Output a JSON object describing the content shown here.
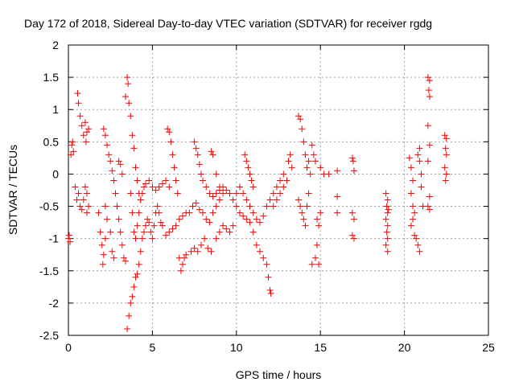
{
  "chart_data": {
    "type": "scatter",
    "title": "Day 172 of 2018, Sidereal Day-to-day VTEC variation (SDTVAR) for receiver rgdg",
    "xlabel": "GPS time / hours",
    "ylabel": "SDTVAR / TECUs",
    "xlim": [
      0,
      25
    ],
    "ylim": [
      -2.5,
      2
    ],
    "xticks": [
      0,
      5,
      10,
      15,
      20,
      25
    ],
    "yticks": [
      -2.5,
      -2,
      -1.5,
      -1,
      -0.5,
      0,
      0.5,
      1,
      1.5,
      2
    ],
    "grid": true,
    "marker": "plus",
    "color": "#ff0000",
    "series": [
      {
        "name": "SDTVAR",
        "points": [
          [
            0.0,
            -1.0
          ],
          [
            0.05,
            -0.95
          ],
          [
            0.1,
            -1.05
          ],
          [
            0.15,
            0.3
          ],
          [
            0.2,
            0.45
          ],
          [
            0.25,
            0.5
          ],
          [
            0.3,
            0.35
          ],
          [
            0.4,
            -0.2
          ],
          [
            0.5,
            -0.4
          ],
          [
            0.55,
            1.25
          ],
          [
            0.6,
            1.1
          ],
          [
            0.7,
            0.9
          ],
          [
            0.8,
            0.75
          ],
          [
            0.9,
            0.6
          ],
          [
            1.0,
            0.8
          ],
          [
            1.05,
            0.5
          ],
          [
            0.6,
            -0.3
          ],
          [
            0.7,
            -0.5
          ],
          [
            0.8,
            -0.55
          ],
          [
            0.9,
            -0.4
          ],
          [
            1.0,
            -0.2
          ],
          [
            1.1,
            -0.3
          ],
          [
            1.1,
            -0.6
          ],
          [
            1.2,
            -0.5
          ],
          [
            1.2,
            0.7
          ],
          [
            1.1,
            0.65
          ],
          [
            1.8,
            -0.6
          ],
          [
            1.9,
            -0.9
          ],
          [
            2.0,
            -1.1
          ],
          [
            2.05,
            -1.4
          ],
          [
            2.1,
            -1.25
          ],
          [
            2.2,
            -1.0
          ],
          [
            2.3,
            -0.7
          ],
          [
            2.2,
            -0.5
          ],
          [
            2.1,
            0.7
          ],
          [
            2.2,
            0.6
          ],
          [
            2.3,
            0.45
          ],
          [
            2.4,
            0.3
          ],
          [
            2.5,
            0.2
          ],
          [
            2.6,
            0.05
          ],
          [
            2.7,
            -0.1
          ],
          [
            2.8,
            -0.3
          ],
          [
            2.9,
            -0.5
          ],
          [
            3.0,
            -0.7
          ],
          [
            3.1,
            -0.9
          ],
          [
            3.2,
            -1.1
          ],
          [
            3.3,
            -1.3
          ],
          [
            3.4,
            -1.35
          ],
          [
            3.0,
            0.2
          ],
          [
            3.1,
            0.15
          ],
          [
            3.2,
            0.0
          ],
          [
            2.5,
            -0.9
          ],
          [
            2.6,
            -1.2
          ],
          [
            2.7,
            -1.3
          ],
          [
            3.4,
            1.2
          ],
          [
            3.5,
            1.5
          ],
          [
            3.55,
            1.4
          ],
          [
            3.6,
            1.1
          ],
          [
            3.7,
            0.9
          ],
          [
            3.8,
            0.6
          ],
          [
            3.9,
            0.4
          ],
          [
            4.0,
            0.1
          ],
          [
            4.1,
            -0.1
          ],
          [
            4.2,
            -0.3
          ],
          [
            4.3,
            -0.4
          ],
          [
            4.4,
            -0.3
          ],
          [
            4.5,
            -0.2
          ],
          [
            4.6,
            -0.15
          ],
          [
            4.8,
            -0.1
          ],
          [
            5.0,
            -0.2
          ],
          [
            5.2,
            -0.25
          ],
          [
            5.4,
            -0.2
          ],
          [
            5.6,
            -0.15
          ],
          [
            5.8,
            -0.1
          ],
          [
            6.0,
            -0.2
          ],
          [
            3.5,
            -2.4
          ],
          [
            3.6,
            -2.2
          ],
          [
            3.7,
            -2.0
          ],
          [
            3.8,
            -1.9
          ],
          [
            3.9,
            -1.75
          ],
          [
            4.0,
            -1.6
          ],
          [
            4.1,
            -1.55
          ],
          [
            4.2,
            -1.4
          ],
          [
            4.3,
            -1.2
          ],
          [
            4.4,
            -1.0
          ],
          [
            4.5,
            -0.9
          ],
          [
            4.6,
            -0.8
          ],
          [
            4.7,
            -0.7
          ],
          [
            4.8,
            -0.75
          ],
          [
            4.9,
            -0.9
          ],
          [
            5.0,
            -1.0
          ],
          [
            5.1,
            -0.8
          ],
          [
            5.2,
            -0.6
          ],
          [
            5.3,
            -0.5
          ],
          [
            5.4,
            -0.6
          ],
          [
            5.5,
            -0.75
          ],
          [
            3.7,
            -0.3
          ],
          [
            3.8,
            -0.6
          ],
          [
            3.9,
            -0.9
          ],
          [
            4.0,
            -1.0
          ],
          [
            4.1,
            -0.8
          ],
          [
            4.2,
            -0.6
          ],
          [
            4.3,
            -0.4
          ],
          [
            5.6,
            -0.8
          ],
          [
            5.8,
            -0.95
          ],
          [
            6.0,
            -0.9
          ],
          [
            6.2,
            -0.85
          ],
          [
            6.4,
            -0.8
          ],
          [
            6.6,
            -0.7
          ],
          [
            6.8,
            -0.65
          ],
          [
            7.0,
            -0.6
          ],
          [
            5.9,
            0.7
          ],
          [
            6.0,
            0.65
          ],
          [
            6.1,
            0.5
          ],
          [
            6.2,
            0.3
          ],
          [
            6.3,
            0.1
          ],
          [
            6.4,
            -0.1
          ],
          [
            6.5,
            -0.3
          ],
          [
            6.6,
            -1.3
          ],
          [
            6.7,
            -1.5
          ],
          [
            6.8,
            -1.4
          ],
          [
            6.9,
            -1.3
          ],
          [
            7.0,
            -1.25
          ],
          [
            7.5,
            0.5
          ],
          [
            7.6,
            0.4
          ],
          [
            7.7,
            0.3
          ],
          [
            7.8,
            0.15
          ],
          [
            7.9,
            0.0
          ],
          [
            8.0,
            -0.1
          ],
          [
            8.2,
            -0.2
          ],
          [
            8.4,
            -0.3
          ],
          [
            8.6,
            -0.35
          ],
          [
            8.8,
            -0.3
          ],
          [
            9.0,
            -0.25
          ],
          [
            9.2,
            -0.2
          ],
          [
            7.3,
            -1.2
          ],
          [
            7.5,
            -1.15
          ],
          [
            7.7,
            -1.2
          ],
          [
            7.9,
            -1.1
          ],
          [
            8.1,
            -1.0
          ],
          [
            8.3,
            -1.15
          ],
          [
            8.5,
            -1.2
          ],
          [
            7.2,
            -0.6
          ],
          [
            7.4,
            -0.5
          ],
          [
            7.6,
            -0.45
          ],
          [
            7.8,
            -0.55
          ],
          [
            8.0,
            -0.6
          ],
          [
            8.2,
            -0.7
          ],
          [
            8.4,
            -0.75
          ],
          [
            8.6,
            -0.6
          ],
          [
            8.8,
            -0.5
          ],
          [
            9.0,
            -0.4
          ],
          [
            9.2,
            -0.3
          ],
          [
            9.4,
            -0.25
          ],
          [
            9.6,
            -0.3
          ],
          [
            9.8,
            -0.4
          ],
          [
            10.0,
            -0.5
          ],
          [
            8.5,
            0.35
          ],
          [
            8.6,
            0.3
          ],
          [
            8.8,
            0.0
          ],
          [
            9.0,
            -0.2
          ],
          [
            8.8,
            -1.0
          ],
          [
            9.0,
            -0.9
          ],
          [
            9.2,
            -0.8
          ],
          [
            9.4,
            -0.85
          ],
          [
            9.6,
            -0.9
          ],
          [
            9.8,
            -0.8
          ],
          [
            10.0,
            -0.3
          ],
          [
            10.2,
            -0.2
          ],
          [
            10.4,
            -0.3
          ],
          [
            10.6,
            -0.4
          ],
          [
            10.8,
            -0.5
          ],
          [
            11.0,
            -0.6
          ],
          [
            11.2,
            -0.7
          ],
          [
            11.4,
            -0.75
          ],
          [
            11.6,
            -0.65
          ],
          [
            11.8,
            -0.5
          ],
          [
            12.0,
            -0.4
          ],
          [
            12.2,
            -0.3
          ],
          [
            12.4,
            -0.2
          ],
          [
            12.6,
            -0.1
          ],
          [
            12.8,
            0.0
          ],
          [
            10.5,
            0.3
          ],
          [
            10.6,
            0.2
          ],
          [
            10.7,
            0.1
          ],
          [
            10.8,
            0.0
          ],
          [
            10.9,
            -0.1
          ],
          [
            11.0,
            -0.2
          ],
          [
            10.2,
            -0.6
          ],
          [
            10.4,
            -0.65
          ],
          [
            10.6,
            -0.7
          ],
          [
            10.8,
            -0.75
          ],
          [
            11.0,
            -0.9
          ],
          [
            11.2,
            -1.1
          ],
          [
            11.4,
            -1.2
          ],
          [
            11.6,
            -1.3
          ],
          [
            11.8,
            -1.4
          ],
          [
            11.9,
            -1.6
          ],
          [
            12.0,
            -1.8
          ],
          [
            12.05,
            -1.85
          ],
          [
            12.2,
            -0.5
          ],
          [
            12.4,
            -0.4
          ],
          [
            12.6,
            -0.3
          ],
          [
            12.8,
            -0.2
          ],
          [
            13.0,
            -0.1
          ],
          [
            13.1,
            0.2
          ],
          [
            13.2,
            0.3
          ],
          [
            13.3,
            0.1
          ],
          [
            13.7,
            0.9
          ],
          [
            13.8,
            0.85
          ],
          [
            13.9,
            0.7
          ],
          [
            14.0,
            0.5
          ],
          [
            14.1,
            0.3
          ],
          [
            14.2,
            0.1
          ],
          [
            14.3,
            0.2
          ],
          [
            14.4,
            0.0
          ],
          [
            13.7,
            -0.4
          ],
          [
            13.8,
            -0.5
          ],
          [
            13.9,
            -0.6
          ],
          [
            14.0,
            -0.7
          ],
          [
            14.1,
            -0.8
          ],
          [
            14.2,
            -0.5
          ],
          [
            14.3,
            -0.3
          ],
          [
            14.5,
            0.45
          ],
          [
            14.6,
            0.3
          ],
          [
            14.7,
            0.2
          ],
          [
            14.5,
            -1.4
          ],
          [
            14.7,
            -1.3
          ],
          [
            14.8,
            -0.7
          ],
          [
            14.9,
            -0.8
          ],
          [
            15.0,
            -0.6
          ],
          [
            14.8,
            -1.1
          ],
          [
            14.9,
            -1.4
          ],
          [
            15.0,
            0.1
          ],
          [
            15.2,
            0.0
          ],
          [
            15.5,
            0.0
          ],
          [
            16.0,
            -0.6
          ],
          [
            16.0,
            0.05
          ],
          [
            16.0,
            -0.35
          ],
          [
            16.9,
            0.25
          ],
          [
            16.95,
            0.2
          ],
          [
            16.9,
            -0.6
          ],
          [
            17.0,
            -0.7
          ],
          [
            16.9,
            -0.95
          ],
          [
            17.0,
            -1.0
          ],
          [
            17.0,
            0.05
          ],
          [
            18.9,
            -0.3
          ],
          [
            19.0,
            -0.4
          ],
          [
            18.95,
            -0.5
          ],
          [
            19.0,
            -0.6
          ],
          [
            18.9,
            -0.7
          ],
          [
            19.0,
            -0.8
          ],
          [
            18.95,
            -0.9
          ],
          [
            19.0,
            -1.0
          ],
          [
            18.9,
            -1.1
          ],
          [
            19.0,
            -1.2
          ],
          [
            19.05,
            -0.55
          ],
          [
            20.3,
            0.25
          ],
          [
            20.4,
            0.1
          ],
          [
            20.5,
            -0.1
          ],
          [
            20.4,
            -0.3
          ],
          [
            20.5,
            -0.5
          ],
          [
            20.6,
            -0.6
          ],
          [
            20.5,
            -0.7
          ],
          [
            20.4,
            -0.8
          ],
          [
            20.6,
            -0.95
          ],
          [
            20.7,
            -1.0
          ],
          [
            20.8,
            -1.1
          ],
          [
            20.9,
            -1.2
          ],
          [
            20.8,
            0.3
          ],
          [
            20.9,
            0.2
          ],
          [
            21.0,
            0.0
          ],
          [
            21.0,
            -0.2
          ],
          [
            21.1,
            -0.5
          ],
          [
            20.9,
            0.4
          ],
          [
            21.4,
            1.5
          ],
          [
            21.5,
            1.45
          ],
          [
            21.45,
            1.3
          ],
          [
            21.5,
            1.2
          ],
          [
            21.4,
            0.75
          ],
          [
            21.5,
            0.45
          ],
          [
            21.4,
            0.2
          ],
          [
            21.5,
            -0.35
          ],
          [
            21.4,
            -0.5
          ],
          [
            21.5,
            -0.55
          ],
          [
            22.4,
            0.6
          ],
          [
            22.5,
            0.55
          ],
          [
            22.45,
            0.4
          ],
          [
            22.5,
            0.3
          ],
          [
            22.4,
            0.1
          ],
          [
            22.5,
            0.0
          ],
          [
            22.45,
            -0.1
          ]
        ]
      }
    ]
  }
}
